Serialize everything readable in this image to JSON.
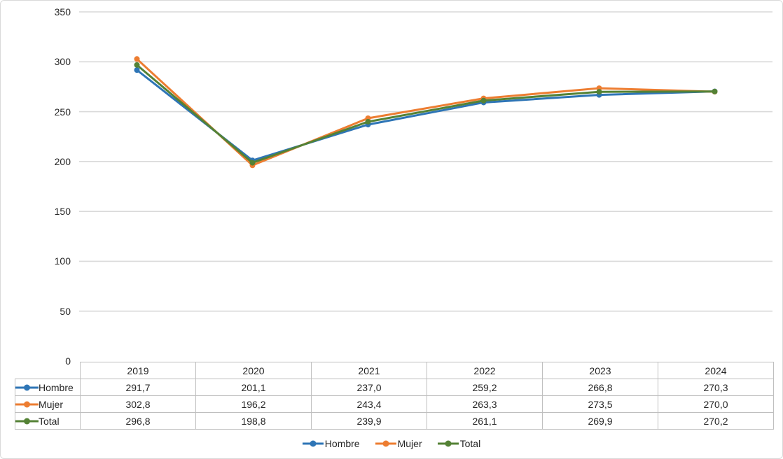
{
  "chart_data": {
    "type": "line",
    "categories": [
      "2019",
      "2020",
      "2021",
      "2022",
      "2023",
      "2024"
    ],
    "series": [
      {
        "name": "Hombre",
        "color": "#2E75B6",
        "values": [
          291.7,
          201.1,
          237.0,
          259.2,
          266.8,
          270.3
        ]
      },
      {
        "name": "Mujer",
        "color": "#ED7D31",
        "values": [
          302.8,
          196.2,
          243.4,
          263.3,
          273.5,
          270.0
        ]
      },
      {
        "name": "Total",
        "color": "#548235",
        "values": [
          296.8,
          198.8,
          239.9,
          261.1,
          269.9,
          270.2
        ]
      }
    ],
    "title": "",
    "xlabel": "",
    "ylabel": "",
    "ylim": [
      0,
      350
    ],
    "y_ticks": [
      0,
      50,
      100,
      150,
      200,
      250,
      300,
      350
    ],
    "grid": true,
    "legend_position": "bottom",
    "data_table_shown": true
  },
  "table": {
    "columns": [
      "2019",
      "2020",
      "2021",
      "2022",
      "2023",
      "2024"
    ],
    "rows": [
      {
        "label": "Hombre",
        "cells": [
          "291,7",
          "201,1",
          "237,0",
          "259,2",
          "266,8",
          "270,3"
        ]
      },
      {
        "label": "Mujer",
        "cells": [
          "302,8",
          "196,2",
          "243,4",
          "263,3",
          "273,5",
          "270,0"
        ]
      },
      {
        "label": "Total",
        "cells": [
          "296,8",
          "198,8",
          "239,9",
          "261,1",
          "269,9",
          "270,2"
        ]
      }
    ]
  },
  "legend": {
    "items": [
      {
        "label": "Hombre",
        "color": "#2E75B6"
      },
      {
        "label": "Mujer",
        "color": "#ED7D31"
      },
      {
        "label": "Total",
        "color": "#548235"
      }
    ]
  },
  "colors": {
    "grid": "#D9D9D9",
    "table_border": "#BFBFBF",
    "text": "#262626",
    "background": "#FFFFFF",
    "frame_border": "#D9D9D9"
  }
}
